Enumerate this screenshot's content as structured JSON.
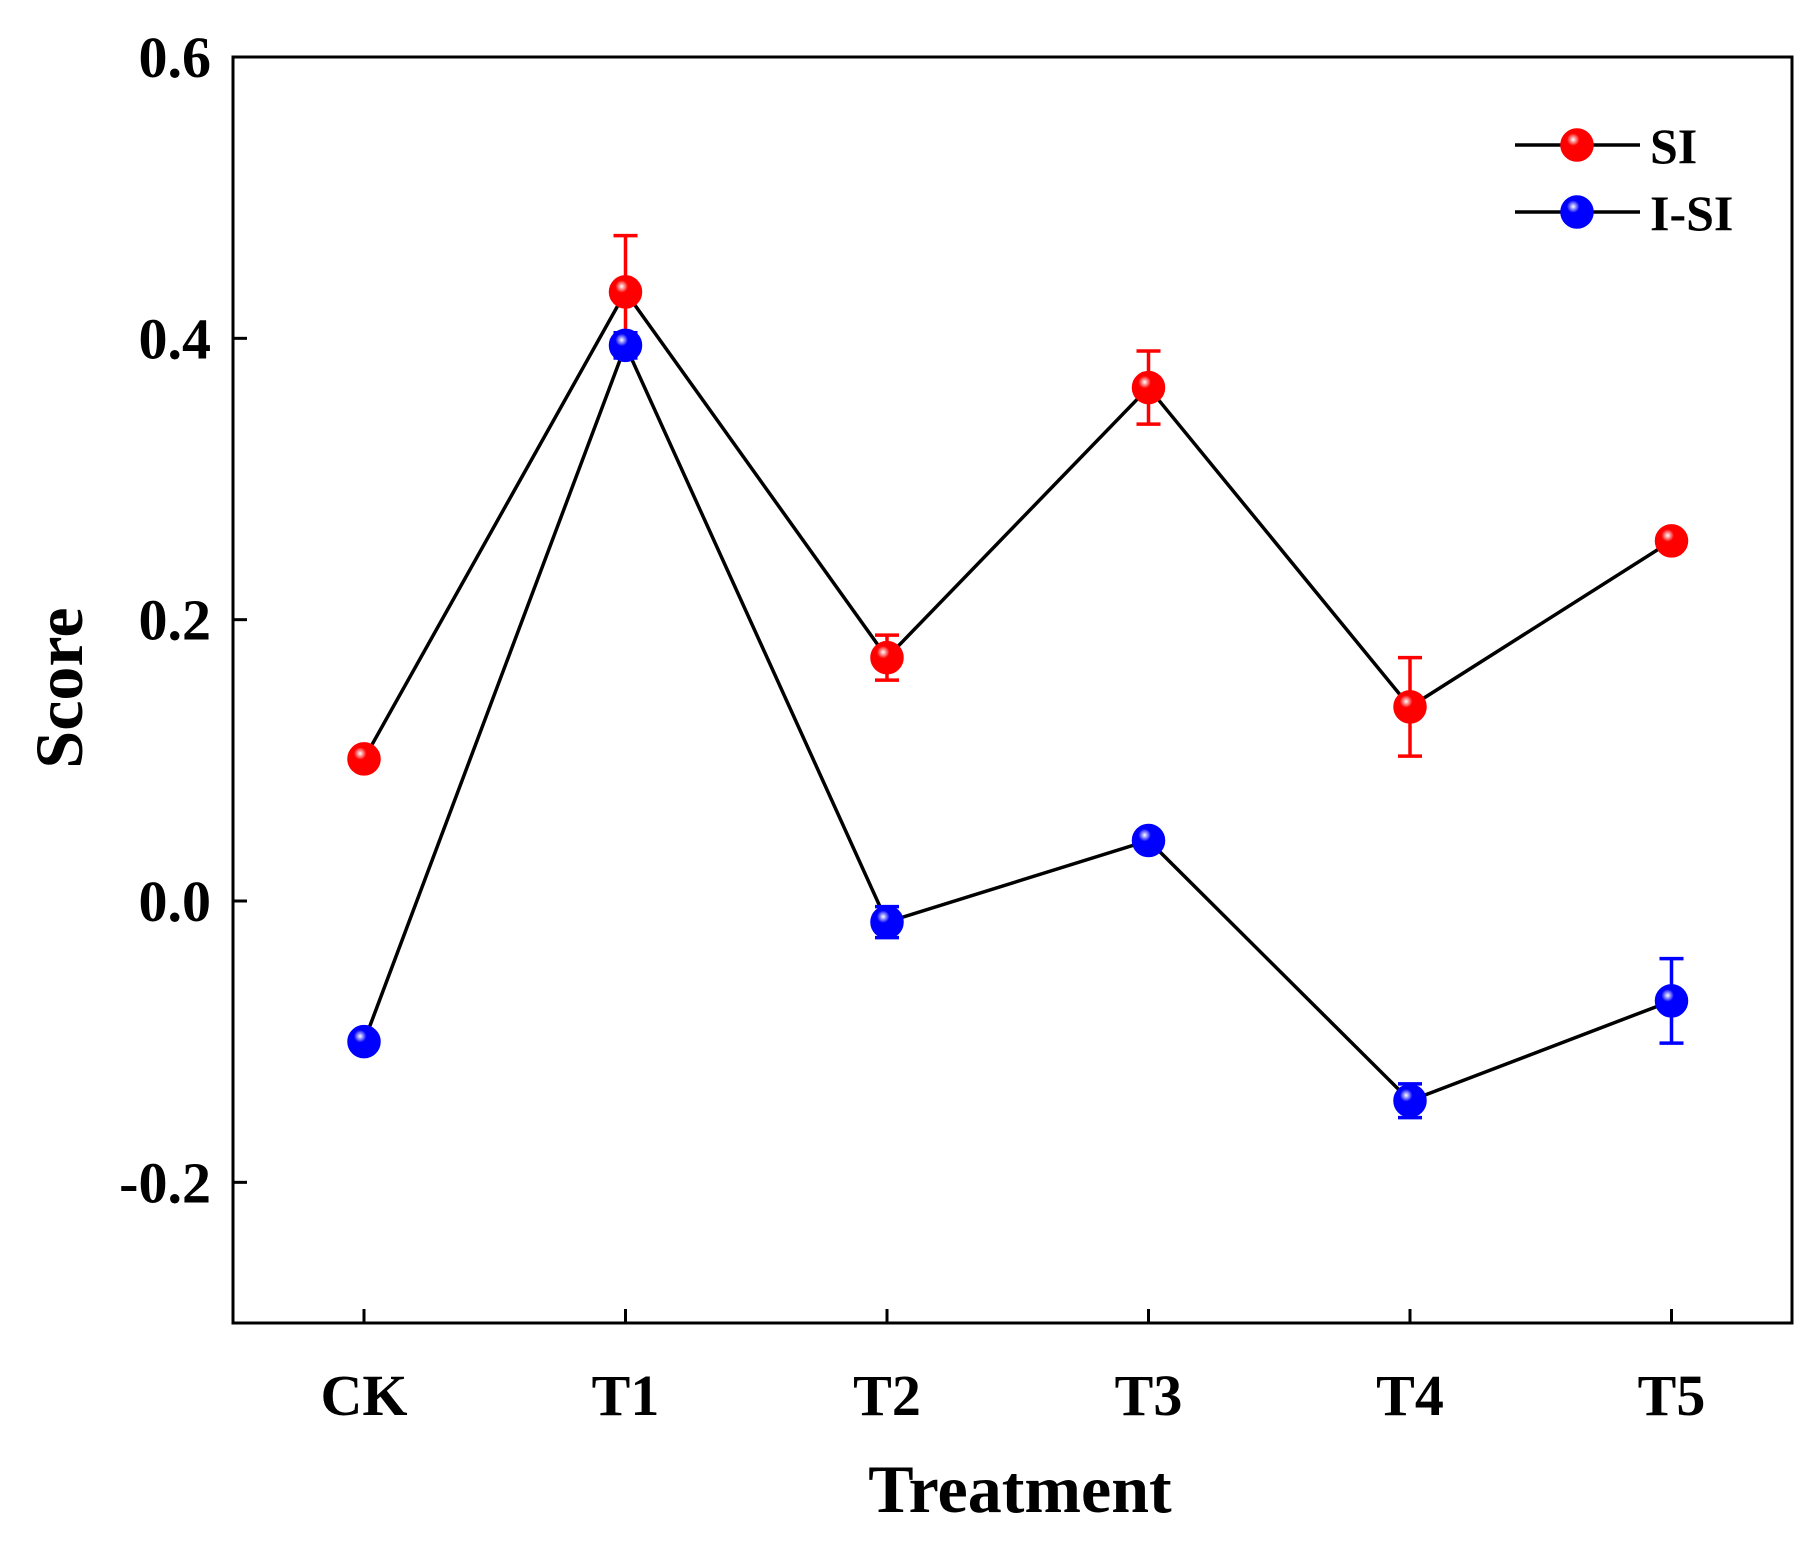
{
  "chart_data": {
    "type": "line",
    "title": "",
    "xlabel": "Treatment",
    "ylabel": "Score",
    "categories": [
      "CK",
      "T1",
      "T2",
      "T3",
      "T4",
      "T5"
    ],
    "ylim": [
      -0.3,
      0.6
    ],
    "yticks": [
      -0.2,
      0.0,
      0.2,
      0.4,
      0.6
    ],
    "ytick_labels": [
      "-0.2",
      "0.0",
      "0.2",
      "0.4",
      "0.6"
    ],
    "grid": false,
    "legend_position": "top-right",
    "line_color": "#000000",
    "series": [
      {
        "name": "SI",
        "color": "#ff0000",
        "values": [
          0.101,
          0.433,
          0.173,
          0.365,
          0.138,
          0.256
        ],
        "errors": [
          0.0,
          0.04,
          0.016,
          0.026,
          0.035,
          0.0
        ]
      },
      {
        "name": "I-SI",
        "color": "#0000ff",
        "values": [
          -0.1,
          0.395,
          -0.015,
          0.043,
          -0.142,
          -0.071
        ],
        "errors": [
          0.0,
          0.009,
          0.011,
          0.0,
          0.012,
          0.03
        ]
      }
    ]
  }
}
